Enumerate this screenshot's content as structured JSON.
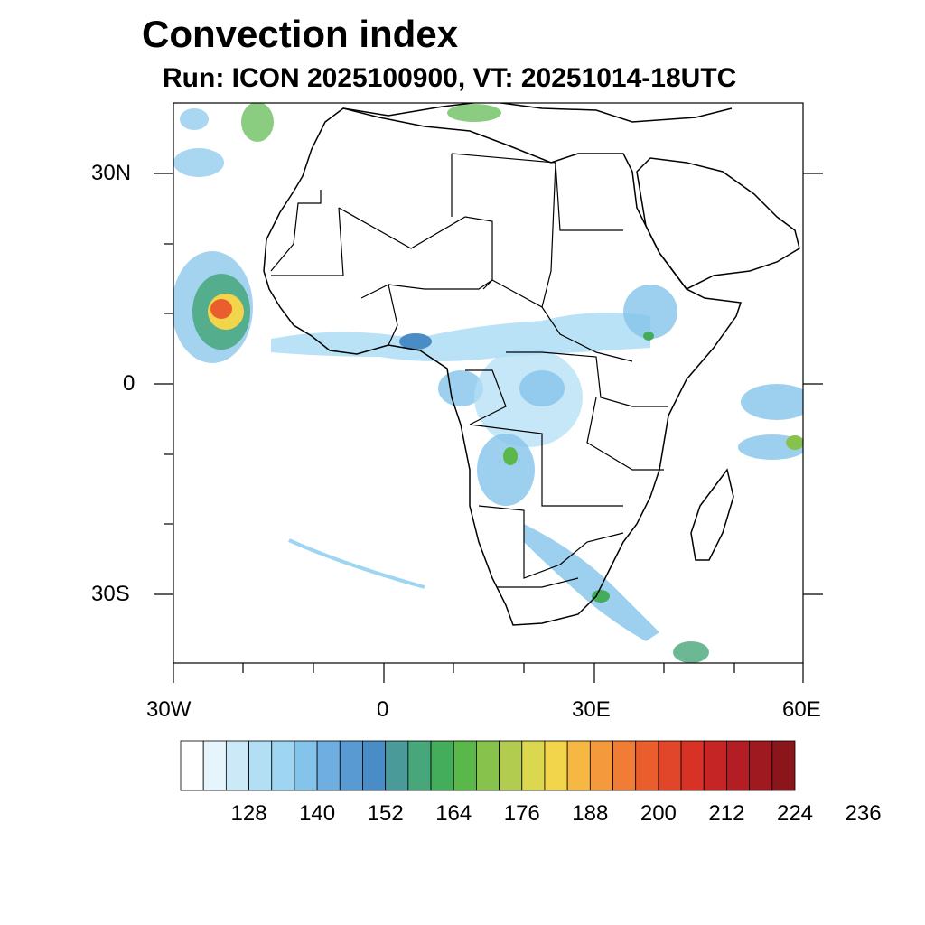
{
  "title": "Convection index",
  "subtitle": "Run: ICON 2025100900,  VT: 20251014-18UTC",
  "map": {
    "region": "Africa",
    "lon_range": [
      -30,
      60
    ],
    "lat_range": [
      -40,
      40
    ],
    "lat_ticks": [
      {
        "label": "30N",
        "value": 30
      },
      {
        "label": "0",
        "value": 0
      },
      {
        "label": "30S",
        "value": -30
      }
    ],
    "lon_ticks": [
      {
        "label": "30W",
        "value": -30
      },
      {
        "label": "0",
        "value": 0
      },
      {
        "label": "30E",
        "value": 30
      },
      {
        "label": "60E",
        "value": 60
      }
    ]
  },
  "colorbar": {
    "labels": [
      "128",
      "140",
      "152",
      "164",
      "176",
      "188",
      "200",
      "212",
      "224",
      "236"
    ],
    "colors": [
      "#ffffff",
      "#e6f4fc",
      "#cce9f8",
      "#b3dff5",
      "#9dd5f2",
      "#85c4ea",
      "#6eaee0",
      "#5a9ad3",
      "#4a8cc6",
      "#4a9a9a",
      "#47a67a",
      "#43ad5c",
      "#5ab84a",
      "#86c24c",
      "#b2cc4f",
      "#dbd84f",
      "#f2d54a",
      "#f7b843",
      "#f59a3c",
      "#f17c35",
      "#ea5e2e",
      "#e1452a",
      "#d83227",
      "#c62526",
      "#b31d24",
      "#9f1a20",
      "#8a161c"
    ]
  }
}
